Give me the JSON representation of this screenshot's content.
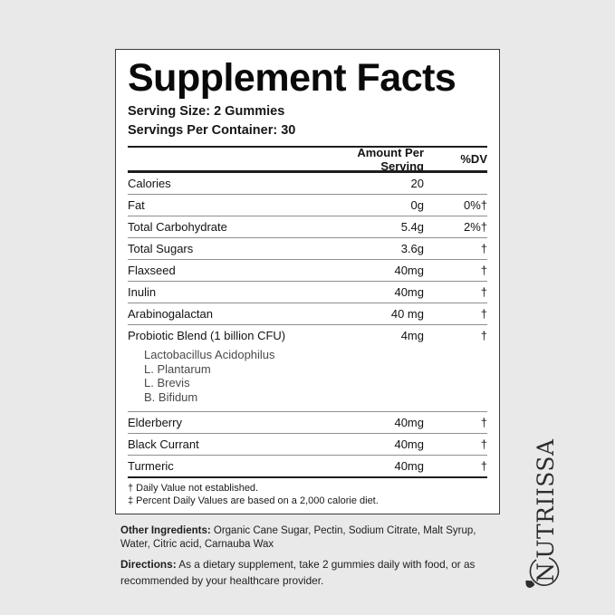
{
  "page": {
    "background": "#e9e9e9"
  },
  "panel": {
    "title": "Supplement Facts",
    "serving_size": "Serving Size: 2 Gummies",
    "servings_per_container": "Servings Per Container: 30",
    "columns": {
      "amount": "Amount Per Serving",
      "dv": "%DV"
    },
    "rows": [
      {
        "name": "Calories",
        "amount": "20",
        "dv": ""
      },
      {
        "name": "Fat",
        "amount": "0g",
        "dv": "0%†"
      },
      {
        "name": "Total Carbohydrate",
        "amount": "5.4g",
        "dv": "2%†"
      },
      {
        "name": "Total Sugars",
        "amount": "3.6g",
        "dv": "†"
      },
      {
        "name": "Flaxseed",
        "amount": "40mg",
        "dv": "†"
      },
      {
        "name": "Inulin",
        "amount": "40mg",
        "dv": "†"
      },
      {
        "name": "Arabinogalactan",
        "amount": "40 mg",
        "dv": "†"
      },
      {
        "name": "Probiotic Blend (1 billion CFU)",
        "amount": "4mg",
        "dv": "†",
        "sub": [
          "Lactobacillus Acidophilus",
          "L. Plantarum",
          "L. Brevis",
          "B. Bifidum"
        ]
      },
      {
        "name": "Elderberry",
        "amount": "40mg",
        "dv": "†"
      },
      {
        "name": "Black Currant",
        "amount": "40mg",
        "dv": "†"
      },
      {
        "name": "Turmeric",
        "amount": "40mg",
        "dv": "†"
      }
    ],
    "footnotes": [
      "† Daily Value not established.",
      "‡ Percent Daily Values are based on a 2,000 calorie diet."
    ]
  },
  "other_ingredients": {
    "label": "Other Ingredients:",
    "text": " Organic Cane Sugar, Pectin, Sodium Citrate, Malt Syrup, Water, Citric acid, Carnauba Wax"
  },
  "directions": {
    "label": "Directions:",
    "text": " As a dietary supplement, take 2 gummies daily with food, or as recommended by your healthcare provider."
  },
  "brand": {
    "name": "NUTRIISSA",
    "first_letter": "N",
    "rest": "UTRIISSA",
    "logo_icon": "leaf-swash-icon"
  },
  "colors": {
    "background": "#e9e9e9",
    "panel_bg": "#ffffff",
    "panel_border": "#3c3c3c",
    "rule_dark": "#1d1d1d",
    "rule_gray": "#8f8f8f",
    "text": "#131313",
    "sub_text": "#4a4a4a",
    "brand_text": "#2d2d2d"
  }
}
